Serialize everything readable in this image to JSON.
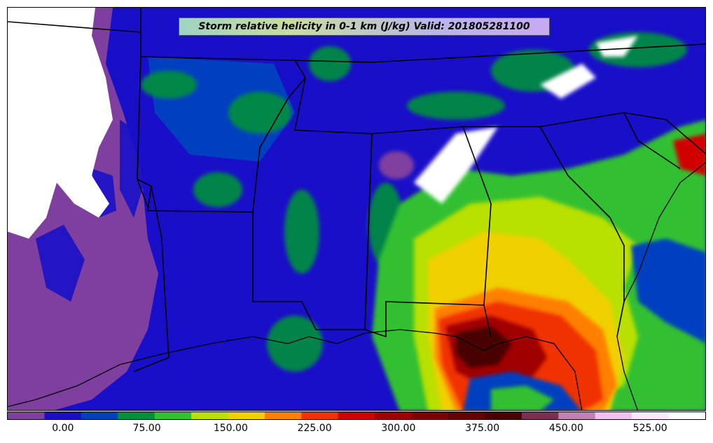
{
  "map": {
    "title": "Storm relative helicity in 0-1 km (J/kg) Valid: 201805281100"
  },
  "colorbar": {
    "colors": [
      "#7f3f9f",
      "#1a0fc8",
      "#0040c0",
      "#00903c",
      "#30c030",
      "#b8e000",
      "#f0d000",
      "#ff8000",
      "#f03000",
      "#d00000",
      "#a00000",
      "#800000",
      "#650000",
      "#4a0000",
      "#7a3050",
      "#c080b0",
      "#f0c0f0",
      "#ffe8ff",
      "#ffffff"
    ],
    "tick_labels": [
      "0.00",
      "75.00",
      "150.00",
      "225.00",
      "300.00",
      "375.00",
      "450.00",
      "525.00"
    ],
    "tick_values": [
      0,
      75,
      150,
      225,
      300,
      375,
      450,
      525
    ],
    "range": [
      -50,
      575
    ]
  }
}
